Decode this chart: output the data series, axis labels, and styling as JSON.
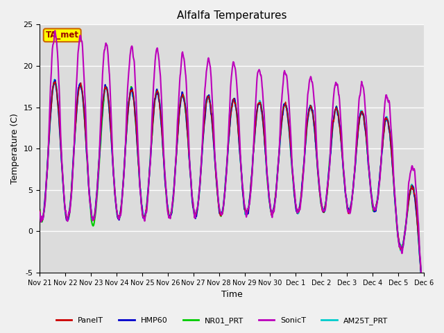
{
  "title": "Alfalfa Temperatures",
  "xlabel": "Time",
  "ylabel": "Temperature (C)",
  "ylim": [
    -5,
    25
  ],
  "annotation": "TA_met",
  "series": [
    {
      "label": "PanelT",
      "color": "#cc0000",
      "lw": 1.0,
      "zorder": 4
    },
    {
      "label": "HMP60",
      "color": "#0000cc",
      "lw": 1.5,
      "zorder": 3
    },
    {
      "label": "NR01_PRT",
      "color": "#00cc00",
      "lw": 1.5,
      "zorder": 2
    },
    {
      "label": "SonicT",
      "color": "#bb00bb",
      "lw": 1.5,
      "zorder": 5
    },
    {
      "label": "AM25T_PRT",
      "color": "#00cccc",
      "lw": 1.5,
      "zorder": 2
    }
  ],
  "xtick_labels": [
    "Nov 21",
    "Nov 22",
    "Nov 23",
    "Nov 24",
    "Nov 25",
    "Nov 26",
    "Nov 27",
    "Nov 28",
    "Nov 29",
    "Nov 30",
    "Dec 1",
    "Dec 2",
    "Dec 3",
    "Dec 4",
    "Dec 5",
    "Dec 6"
  ],
  "plot_bg": "#dcdcdc",
  "fig_bg": "#f0f0f0",
  "n_days": 15,
  "pts_per_day": 96
}
